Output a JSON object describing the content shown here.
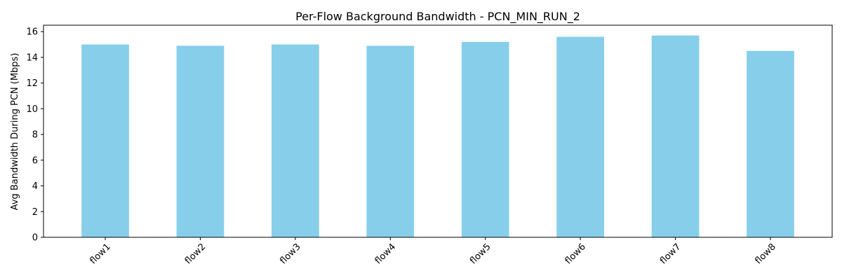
{
  "chart_data": {
    "type": "bar",
    "title": "Per-Flow Background Bandwidth - PCN_MIN_RUN_2",
    "xlabel": "",
    "ylabel": "Avg Bandwidth During PCN (Mbps)",
    "categories": [
      "flow1",
      "flow2",
      "flow3",
      "flow4",
      "flow5",
      "flow6",
      "flow7",
      "flow8"
    ],
    "values": [
      15.0,
      14.9,
      15.0,
      14.9,
      15.2,
      15.6,
      15.7,
      14.5
    ],
    "ylim": [
      0,
      16.5
    ],
    "yticks": [
      0,
      2,
      4,
      6,
      8,
      10,
      12,
      14,
      16
    ],
    "grid": false,
    "legend": "none",
    "bar_color": "#87ceeb"
  }
}
